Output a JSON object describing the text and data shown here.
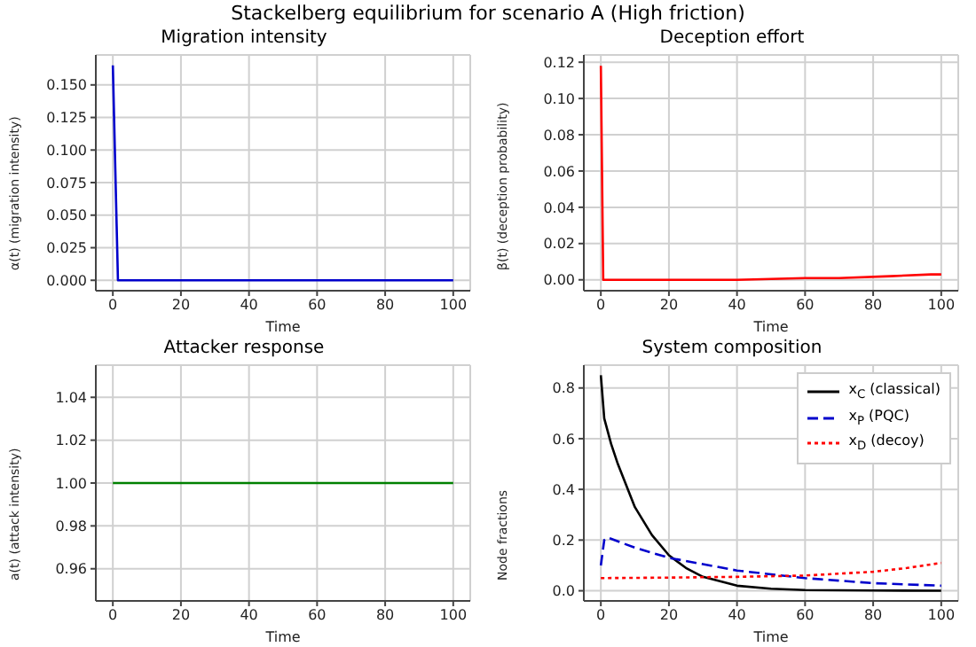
{
  "chart_data": [
    {
      "type": "line",
      "title": "Migration intensity",
      "xlabel": "Time",
      "ylabel": "α(t) (migration intensity)",
      "annotations": [
        "Stackelberg equilibrium for scenario A (High friction)"
      ],
      "grid": true,
      "xlim": [
        -5,
        105
      ],
      "xticks": [
        0,
        20,
        40,
        60,
        80,
        100
      ],
      "ylim": [
        -0.008,
        0.173
      ],
      "yticks": [
        {
          "value": 0,
          "label": "0.000"
        },
        {
          "value": 0.025,
          "label": "0.025"
        },
        {
          "value": 0.05,
          "label": "0.050"
        },
        {
          "value": 0.075,
          "label": "0.075"
        },
        {
          "value": 0.1,
          "label": "0.100"
        },
        {
          "value": 0.125,
          "label": "0.125"
        },
        {
          "value": 0.15,
          "label": "0.150"
        }
      ],
      "series": [
        {
          "color": "#0000cc",
          "x": [
            0,
            1.5,
            100
          ],
          "values": [
            0.165,
            0,
            0
          ]
        }
      ]
    },
    {
      "type": "line",
      "title": "Deception effort",
      "xlabel": "Time",
      "ylabel": "β(t) (deception probability)",
      "grid": true,
      "xlim": [
        -5,
        105
      ],
      "xticks": [
        0,
        20,
        40,
        60,
        80,
        100
      ],
      "ylim": [
        -0.006,
        0.124
      ],
      "yticks": [
        {
          "value": 0,
          "label": "0.00"
        },
        {
          "value": 0.02,
          "label": "0.02"
        },
        {
          "value": 0.04,
          "label": "0.04"
        },
        {
          "value": 0.06,
          "label": "0.06"
        },
        {
          "value": 0.08,
          "label": "0.08"
        },
        {
          "value": 0.1,
          "label": "0.10"
        },
        {
          "value": 0.12,
          "label": "0.12"
        }
      ],
      "series": [
        {
          "color": "#ff0000",
          "x": [
            0,
            0.7,
            40,
            60,
            70,
            85,
            97,
            100
          ],
          "values": [
            0.118,
            0,
            0,
            0.001,
            0.001,
            0.002,
            0.003,
            0.003
          ]
        }
      ]
    },
    {
      "type": "line",
      "title": "Attacker response",
      "xlabel": "Time",
      "ylabel": "a(t) (attack intensity)",
      "grid": true,
      "xlim": [
        -5,
        105
      ],
      "xticks": [
        0,
        20,
        40,
        60,
        80,
        100
      ],
      "ylim": [
        0.945,
        1.055
      ],
      "yticks": [
        {
          "value": 0.96,
          "label": "0.96"
        },
        {
          "value": 0.98,
          "label": "0.98"
        },
        {
          "value": 1,
          "label": "1.00"
        },
        {
          "value": 1.02,
          "label": "1.02"
        },
        {
          "value": 1.04,
          "label": "1.04"
        }
      ],
      "series": [
        {
          "color": "#008000",
          "x": [
            0,
            100
          ],
          "values": [
            1,
            1
          ]
        }
      ]
    },
    {
      "type": "line",
      "title": "System composition",
      "xlabel": "Time",
      "ylabel": "Node fractions",
      "grid": true,
      "legend": "top right",
      "xlim": [
        -5,
        105
      ],
      "xticks": [
        0,
        20,
        40,
        60,
        80,
        100
      ],
      "ylim": [
        -0.04,
        0.89
      ],
      "yticks": [
        {
          "value": 0,
          "label": "0.0"
        },
        {
          "value": 0.2,
          "label": "0.2"
        },
        {
          "value": 0.4,
          "label": "0.4"
        },
        {
          "value": 0.6,
          "label": "0.6"
        },
        {
          "value": 0.8,
          "label": "0.8"
        }
      ],
      "series": [
        {
          "name": "x$_{C}$ (classical)",
          "color": "#000000",
          "line_style": "solid",
          "x": [
            0,
            1,
            3,
            5,
            10,
            15,
            20,
            25,
            30,
            40,
            50,
            60,
            80,
            100
          ],
          "values": [
            0.85,
            0.68,
            0.58,
            0.5,
            0.33,
            0.22,
            0.14,
            0.09,
            0.055,
            0.02,
            0.008,
            0.003,
            0.001,
            0
          ]
        },
        {
          "name": "x$_{P}$ (PQC)",
          "color": "#0000cc",
          "line_style": "dashed",
          "x": [
            0,
            1,
            2,
            10,
            20,
            40,
            60,
            80,
            100
          ],
          "values": [
            0.1,
            0.2,
            0.21,
            0.17,
            0.13,
            0.08,
            0.05,
            0.03,
            0.02
          ]
        },
        {
          "name": "x$_{D}$ (decoy)",
          "color": "#ff0000",
          "line_style": "dotted",
          "x": [
            0,
            20,
            40,
            60,
            80,
            90,
            100
          ],
          "values": [
            0.05,
            0.052,
            0.055,
            0.06,
            0.075,
            0.09,
            0.11
          ]
        }
      ]
    }
  ]
}
